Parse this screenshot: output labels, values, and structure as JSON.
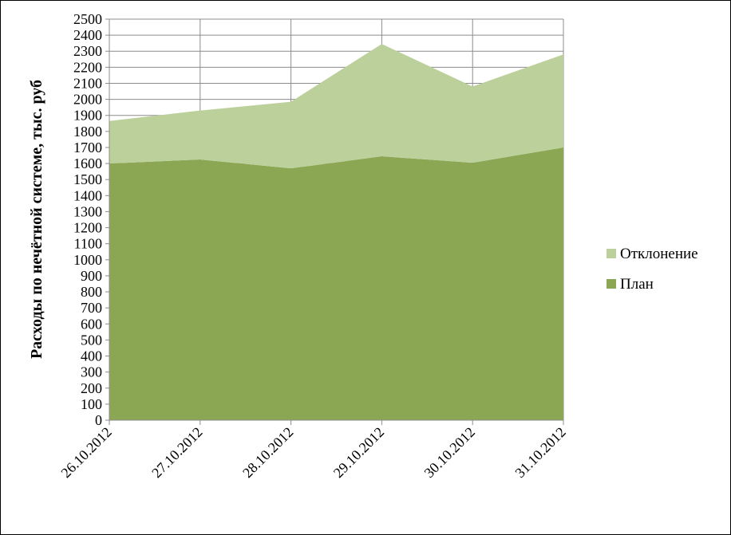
{
  "chart_data": {
    "type": "area",
    "stacked": true,
    "categories": [
      "26.10.2012",
      "27.10.2012",
      "28.10.2012",
      "29.10.2012",
      "30.10.2012",
      "31.10.2012"
    ],
    "series": [
      {
        "name": "План",
        "values": [
          1600,
          1625,
          1570,
          1645,
          1605,
          1700
        ],
        "color": "#8BA753"
      },
      {
        "name": "Отклонение",
        "values": [
          265,
          305,
          415,
          700,
          475,
          580
        ],
        "color": "#BCD09B"
      }
    ],
    "ylabel": "Расходы по нечётной системе, тыс. руб",
    "xlabel": "",
    "ylim": [
      0,
      2500
    ],
    "ytick_step": 100,
    "grid": true,
    "legend_position": "right",
    "legend_order": [
      "Отклонение",
      "План"
    ]
  }
}
